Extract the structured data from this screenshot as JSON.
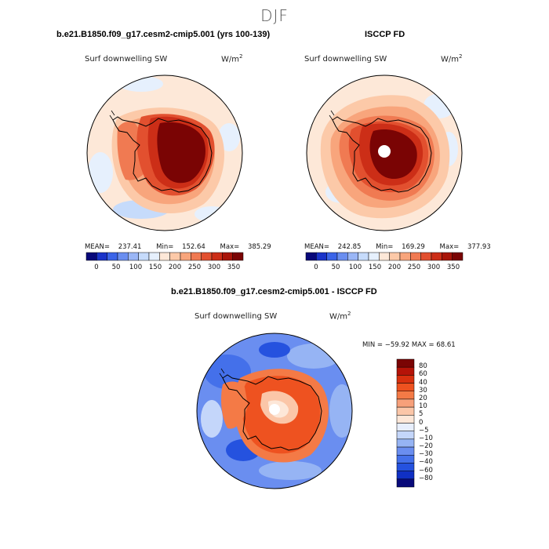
{
  "season": "DJF",
  "panels": [
    {
      "title": "b.e21.B1850.f09_g17.cesm2-cmip5.001 (yrs 100-139)",
      "variable": "Surf downwelling SW",
      "units_base": "W/m",
      "units_exp": "2",
      "mean_label": "MEAN=",
      "mean": "237.41",
      "min_label": "Min=",
      "min": "152.64",
      "max_label": "Max=",
      "max": "385.29"
    },
    {
      "title": "ISCCP FD",
      "variable": "Surf downwelling SW",
      "units_base": "W/m",
      "units_exp": "2",
      "mean_label": "MEAN=",
      "mean": "242.85",
      "min_label": "Min=",
      "min": "169.29",
      "max_label": "Max=",
      "max": "377.93"
    }
  ],
  "diff_panel": {
    "title": "b.e21.B1850.f09_g17.cesm2-cmip5.001 - ISCCP FD",
    "variable": "Surf downwelling SW",
    "units_base": "W/m",
    "units_exp": "2",
    "range_text": "MIN = −59.92  MAX =  68.61"
  },
  "abs_colorbar": {
    "ticks": [
      "0",
      "50",
      "100",
      "150",
      "200",
      "250",
      "300",
      "350"
    ],
    "colors": [
      "#08087a",
      "#1a33c9",
      "#3b64e8",
      "#6a8ef0",
      "#9ab6f6",
      "#c6dbfb",
      "#e6f0fd",
      "#fde8d8",
      "#fcc9a8",
      "#f8a57c",
      "#f07a52",
      "#e2502f",
      "#cc2e17",
      "#a81509",
      "#7a0404"
    ]
  },
  "diff_colorbar": {
    "ticks": [
      "80",
      "60",
      "40",
      "30",
      "20",
      "10",
      "5",
      "0",
      "−5",
      "−10",
      "−20",
      "−30",
      "−40",
      "−60",
      "−80"
    ],
    "colors": [
      "#7a0404",
      "#b51308",
      "#d8300f",
      "#ee5220",
      "#f47a46",
      "#f7a07a",
      "#fbc6a8",
      "#fde7d8",
      "#e8effd",
      "#c4d6fa",
      "#96b4f4",
      "#6a8ef0",
      "#4470ea",
      "#2552df",
      "#1030c4",
      "#080a7a"
    ]
  }
}
